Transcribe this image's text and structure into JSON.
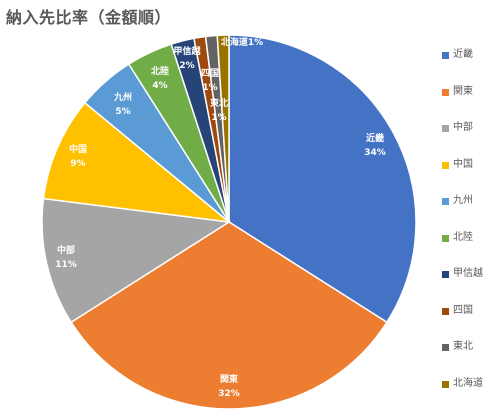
{
  "chart_data": {
    "type": "pie",
    "title": "納入先比率（金額順）",
    "legend": "right",
    "series": [
      {
        "name": "近畿",
        "value": 34,
        "label": "34%",
        "color": "#4472C4"
      },
      {
        "name": "関東",
        "value": 32,
        "label": "32%",
        "color": "#ED7D31"
      },
      {
        "name": "中部",
        "value": 11,
        "label": "11%",
        "color": "#A5A5A5"
      },
      {
        "name": "中国",
        "value": 9,
        "label": "9%",
        "color": "#FFC000"
      },
      {
        "name": "九州",
        "value": 5,
        "label": "5%",
        "color": "#5B9BD5"
      },
      {
        "name": "北陸",
        "value": 4,
        "label": "4%",
        "color": "#70AD47"
      },
      {
        "name": "甲信越",
        "value": 2,
        "label": "2%",
        "color": "#264478"
      },
      {
        "name": "四国",
        "value": 1,
        "label": "1%",
        "color": "#9E480E"
      },
      {
        "name": "東北",
        "value": 1,
        "label": "1%",
        "color": "#636363"
      },
      {
        "name": "北海道",
        "value": 1,
        "label": "1%",
        "color": "#997300"
      }
    ]
  }
}
